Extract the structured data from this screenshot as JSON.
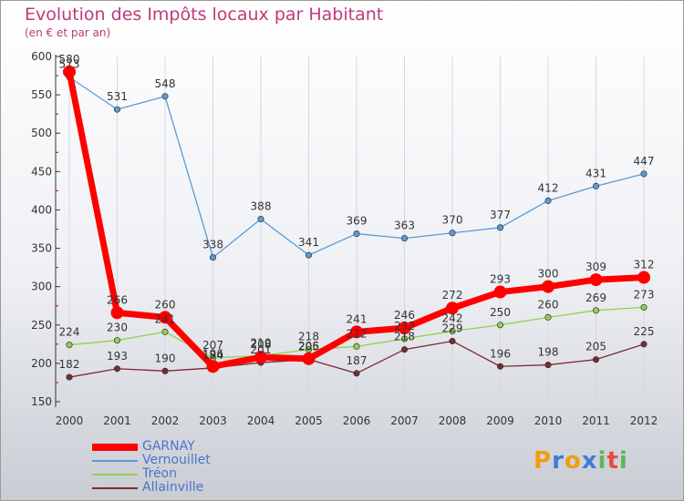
{
  "chart_data": {
    "type": "line",
    "title": "Evolution des Impôts locaux par Habitant",
    "subtitle": "(en € et par an)",
    "categories": [
      "2000",
      "2001",
      "2002",
      "2003",
      "2004",
      "2005",
      "2006",
      "2007",
      "2008",
      "2009",
      "2010",
      "2011",
      "2012"
    ],
    "yticks": [
      150,
      200,
      250,
      300,
      350,
      400,
      450,
      500,
      550,
      600
    ],
    "ylim": [
      150,
      600
    ],
    "series": [
      {
        "name": "Vernouillet",
        "color": "#5b9bd5",
        "values": [
          573,
          531,
          548,
          338,
          388,
          341,
          369,
          363,
          370,
          377,
          412,
          431,
          447
        ]
      },
      {
        "name": "Tréon",
        "color": "#8fd14f",
        "values": [
          224,
          230,
          241,
          207,
          210,
          218,
          222,
          232,
          242,
          250,
          260,
          269,
          273
        ]
      },
      {
        "name": "Allainville",
        "color": "#7a2a32",
        "values": [
          182,
          193,
          190,
          194,
          201,
          205,
          187,
          218,
          229,
          196,
          198,
          205,
          225
        ]
      },
      {
        "name": "GARNAY",
        "color": "#ff0000",
        "values": [
          580,
          266,
          260,
          196,
          208,
          206,
          241,
          246,
          272,
          293,
          300,
          309,
          312
        ]
      }
    ],
    "legend": [
      "GARNAY",
      "Vernouillet",
      "Tréon",
      "Allainville"
    ]
  },
  "logo": {
    "letters": [
      "P",
      "r",
      "o",
      "x",
      "i",
      "t",
      "i"
    ],
    "colors": [
      "#f39c12",
      "#3b7fd4",
      "#f39c12",
      "#3b7fd4",
      "#5cb85c",
      "#e74c3c",
      "#5cb85c"
    ]
  }
}
